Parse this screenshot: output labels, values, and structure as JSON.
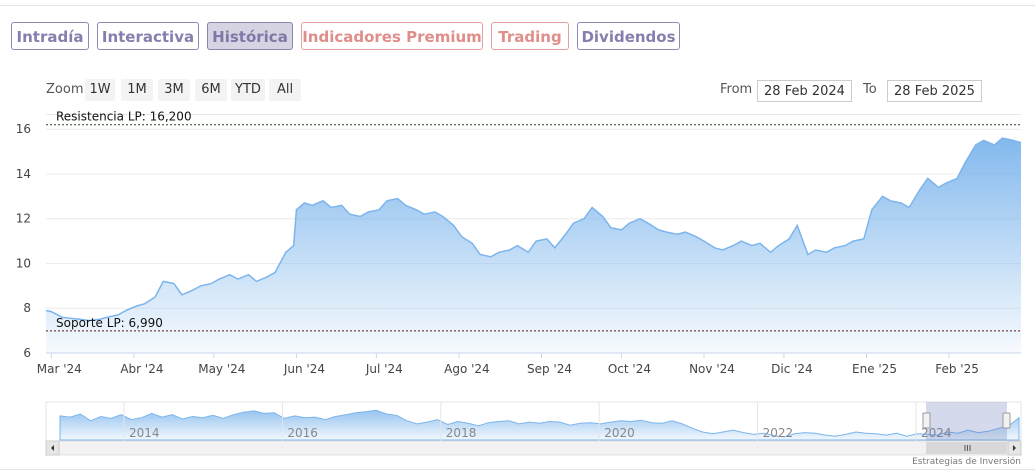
{
  "tabs": [
    {
      "label": "Intradía",
      "style": "purple"
    },
    {
      "label": "Interactiva",
      "style": "purple"
    },
    {
      "label": "Histórica",
      "style": "active"
    },
    {
      "label": "Indicadores Premium",
      "style": "red"
    },
    {
      "label": "Trading",
      "style": "red"
    },
    {
      "label": "Dividendos",
      "style": "purple"
    }
  ],
  "zoom": {
    "label": "Zoom",
    "buttons": [
      "1W",
      "1M",
      "3M",
      "6M",
      "YTD",
      "All"
    ]
  },
  "range": {
    "from_label": "From",
    "from_value": "28 Feb 2024",
    "to_label": "To",
    "to_value": "28 Feb 2025"
  },
  "credit": "Estrategias de Inversión",
  "colors": {
    "line": "#7cb5ec",
    "tab_purple": "#857fae",
    "tab_red": "#e08e8a",
    "level_line": "#333333"
  },
  "chart_data": {
    "type": "area",
    "ylim": [
      6,
      16.5
    ],
    "y_ticks": [
      6,
      8,
      10,
      12,
      14,
      16
    ],
    "x_start": "2024-02-28",
    "x_end": "2025-02-28",
    "x_tick_labels": [
      "Mar '24",
      "Abr '24",
      "May '24",
      "Jun '24",
      "Jul '24",
      "Ago '24",
      "Sep '24",
      "Oct '24",
      "Nov '24",
      "Dic '24",
      "Ene '25",
      "Feb '25"
    ],
    "x_tick_dates": [
      "2024-03-01",
      "2024-04-01",
      "2024-05-01",
      "2024-06-01",
      "2024-07-01",
      "2024-08-01",
      "2024-09-01",
      "2024-10-01",
      "2024-11-01",
      "2024-12-01",
      "2025-01-01",
      "2025-02-01"
    ],
    "series": [
      {
        "x": [
          "2024-02-28",
          "2024-03-01",
          "2024-03-05",
          "2024-03-08",
          "2024-03-12",
          "2024-03-15",
          "2024-03-19",
          "2024-03-22",
          "2024-03-26",
          "2024-03-29",
          "2024-04-02",
          "2024-04-05",
          "2024-04-09",
          "2024-04-12",
          "2024-04-16",
          "2024-04-19",
          "2024-04-23",
          "2024-04-26",
          "2024-04-30",
          "2024-05-03",
          "2024-05-07",
          "2024-05-10",
          "2024-05-14",
          "2024-05-17",
          "2024-05-21",
          "2024-05-24",
          "2024-05-28",
          "2024-05-31",
          "2024-06-01",
          "2024-06-04",
          "2024-06-07",
          "2024-06-11",
          "2024-06-14",
          "2024-06-18",
          "2024-06-21",
          "2024-06-25",
          "2024-06-28",
          "2024-07-02",
          "2024-07-05",
          "2024-07-09",
          "2024-07-12",
          "2024-07-16",
          "2024-07-19",
          "2024-07-23",
          "2024-07-26",
          "2024-07-30",
          "2024-08-02",
          "2024-08-06",
          "2024-08-09",
          "2024-08-13",
          "2024-08-16",
          "2024-08-20",
          "2024-08-23",
          "2024-08-27",
          "2024-08-30",
          "2024-09-03",
          "2024-09-06",
          "2024-09-10",
          "2024-09-13",
          "2024-09-17",
          "2024-09-20",
          "2024-09-24",
          "2024-09-27",
          "2024-10-01",
          "2024-10-04",
          "2024-10-08",
          "2024-10-11",
          "2024-10-15",
          "2024-10-18",
          "2024-10-22",
          "2024-10-25",
          "2024-10-29",
          "2024-11-01",
          "2024-11-05",
          "2024-11-08",
          "2024-11-12",
          "2024-11-15",
          "2024-11-19",
          "2024-11-22",
          "2024-11-26",
          "2024-11-29",
          "2024-12-03",
          "2024-12-06",
          "2024-12-10",
          "2024-12-13",
          "2024-12-17",
          "2024-12-20",
          "2024-12-24",
          "2024-12-27",
          "2024-12-31",
          "2025-01-03",
          "2025-01-07",
          "2025-01-10",
          "2025-01-14",
          "2025-01-17",
          "2025-01-21",
          "2025-01-24",
          "2025-01-28",
          "2025-01-31",
          "2025-02-04",
          "2025-02-07",
          "2025-02-11",
          "2025-02-14",
          "2025-02-18",
          "2025-02-21",
          "2025-02-25",
          "2025-02-28"
        ],
        "y": [
          7.9,
          7.85,
          7.6,
          7.55,
          7.5,
          7.45,
          7.5,
          7.6,
          7.7,
          7.9,
          8.1,
          8.2,
          8.5,
          9.2,
          9.1,
          8.6,
          8.8,
          9.0,
          9.1,
          9.3,
          9.5,
          9.3,
          9.5,
          9.2,
          9.4,
          9.6,
          10.5,
          10.8,
          12.4,
          12.7,
          12.6,
          12.8,
          12.5,
          12.6,
          12.2,
          12.1,
          12.3,
          12.4,
          12.8,
          12.9,
          12.6,
          12.4,
          12.2,
          12.3,
          12.1,
          11.7,
          11.2,
          10.9,
          10.4,
          10.3,
          10.5,
          10.6,
          10.8,
          10.5,
          11.0,
          11.1,
          10.7,
          11.3,
          11.8,
          12.0,
          12.5,
          12.1,
          11.6,
          11.5,
          11.8,
          12.0,
          11.8,
          11.5,
          11.4,
          11.3,
          11.4,
          11.2,
          11.0,
          10.7,
          10.6,
          10.8,
          11.0,
          10.8,
          10.9,
          10.5,
          10.8,
          11.1,
          11.7,
          10.4,
          10.6,
          10.5,
          10.7,
          10.8,
          11.0,
          11.1,
          12.4,
          13.0,
          12.8,
          12.7,
          12.5,
          13.3,
          13.8,
          13.4,
          13.6,
          13.8,
          14.5,
          15.3,
          15.5,
          15.3,
          15.6,
          15.5,
          15.4
        ]
      }
    ],
    "annotations": [
      {
        "label": "Resistencia LP: 16,200",
        "y": 16.2
      },
      {
        "label": "Soporte LP: 6,990",
        "y": 6.99
      }
    ],
    "navigator": {
      "year_labels": [
        "2014",
        "2016",
        "2018",
        "2020",
        "2022",
        "2024"
      ],
      "series_y": [
        13.2,
        13.0,
        13.5,
        12.4,
        13.1,
        12.8,
        13.4,
        12.6,
        12.9,
        13.6,
        13.0,
        13.4,
        12.7,
        13.1,
        12.9,
        13.3,
        12.8,
        13.4,
        13.8,
        14.0,
        13.6,
        13.7,
        12.8,
        13.2,
        12.9,
        13.0,
        12.6,
        13.1,
        13.4,
        13.7,
        13.9,
        14.1,
        13.5,
        13.3,
        12.4,
        11.9,
        12.2,
        12.6,
        11.8,
        12.3,
        12.0,
        11.6,
        12.1,
        12.3,
        12.4,
        11.9,
        12.2,
        12.0,
        12.3,
        12.2,
        11.7,
        12.0,
        12.1,
        11.9,
        12.2,
        12.4,
        12.3,
        12.5,
        12.1,
        12.0,
        12.4,
        11.9,
        11.2,
        10.6,
        10.3,
        10.6,
        10.9,
        10.5,
        10.2,
        10.4,
        10.0,
        9.8,
        10.3,
        10.5,
        10.4,
        10.1,
        9.9,
        10.2,
        10.6,
        10.4,
        10.3,
        10.1,
        10.4,
        9.9,
        10.3,
        10.2,
        10.1,
        10.6,
        10.4,
        10.9,
        10.5,
        10.7,
        11.2,
        11.6,
        12.9
      ]
    }
  }
}
